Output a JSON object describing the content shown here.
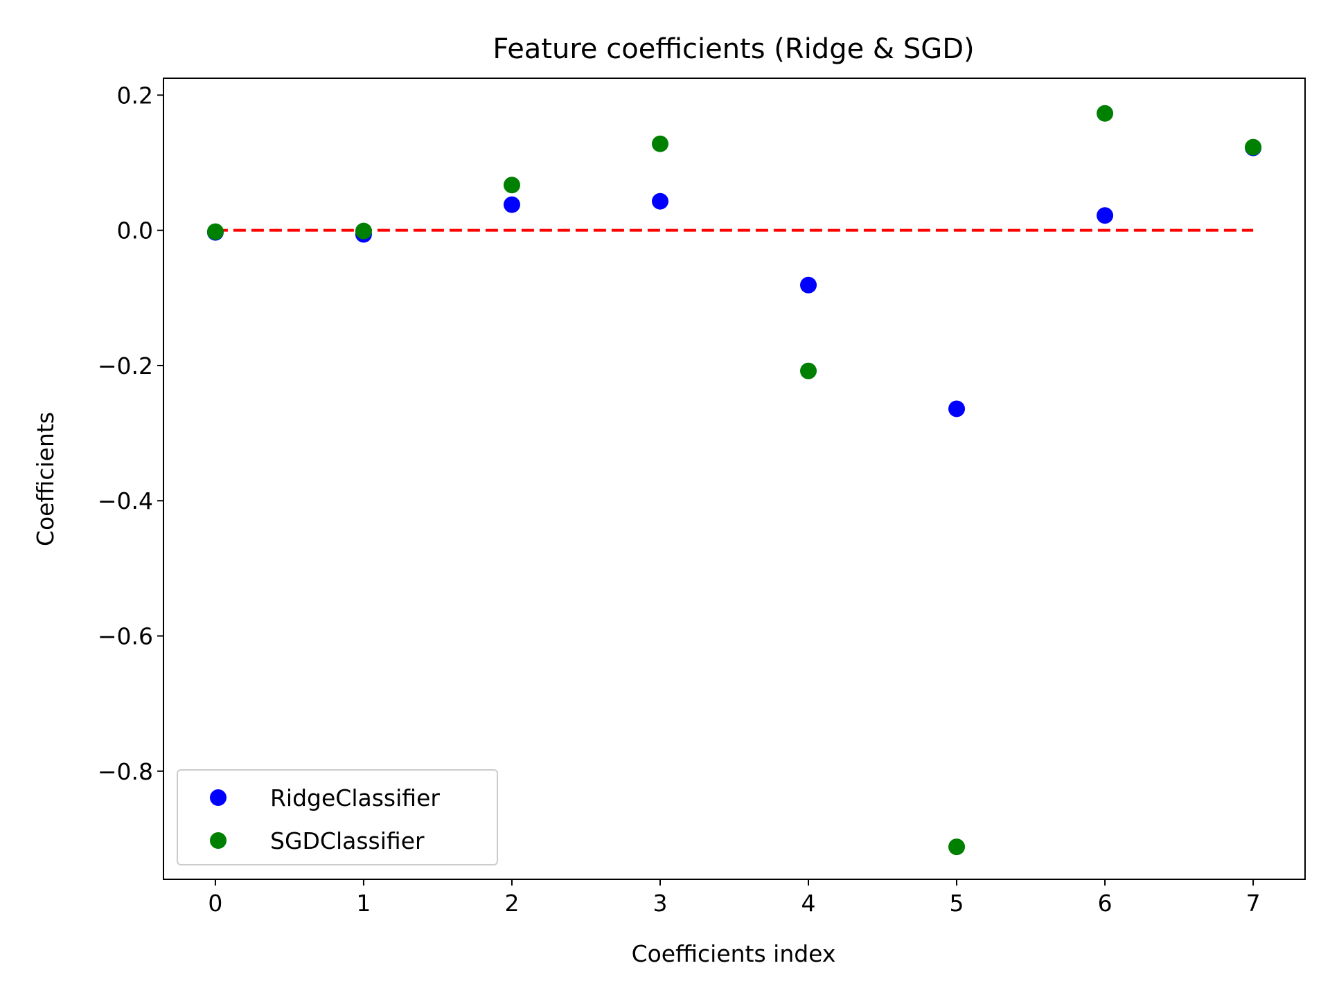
{
  "chart_data": {
    "type": "scatter",
    "title": "Feature coefficients (Ridge & SGD)",
    "xlabel": "Coefficients index",
    "ylabel": "Coefficients",
    "xlim": [
      -0.35,
      7.35
    ],
    "ylim": [
      -0.96,
      0.225
    ],
    "xticks": [
      0,
      1,
      2,
      3,
      4,
      5,
      6,
      7
    ],
    "xtick_labels": [
      "0",
      "1",
      "2",
      "3",
      "4",
      "5",
      "6",
      "7"
    ],
    "yticks": [
      0.2,
      0.0,
      -0.2,
      -0.4,
      -0.6,
      -0.8
    ],
    "ytick_labels": [
      "0.2",
      "0.0",
      "−0.2",
      "−0.4",
      "−0.6",
      "−0.8"
    ],
    "grid": false,
    "legend_position": "lower-left",
    "reference_line": {
      "y": 0.0,
      "x_from": 0,
      "x_to": 7,
      "color": "#ff0000",
      "style": "dashed"
    },
    "series": [
      {
        "name": "RidgeClassifier",
        "color": "#0000ff",
        "x": [
          0,
          1,
          2,
          3,
          4,
          5,
          6,
          7
        ],
        "y": [
          -0.003,
          -0.006,
          0.038,
          0.043,
          -0.081,
          -0.264,
          0.022,
          0.122
        ]
      },
      {
        "name": "SGDClassifier",
        "color": "#008000",
        "x": [
          0,
          1,
          2,
          3,
          4,
          5,
          6,
          7
        ],
        "y": [
          -0.002,
          -0.001,
          0.067,
          0.128,
          -0.208,
          -0.912,
          0.173,
          0.123
        ]
      }
    ]
  }
}
